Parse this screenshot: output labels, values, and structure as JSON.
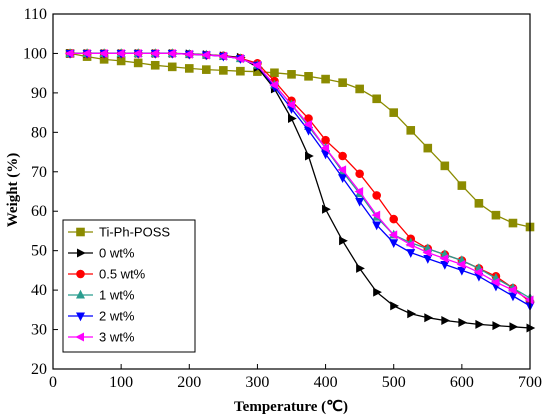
{
  "chart_data": {
    "type": "line",
    "title": "",
    "xlabel": "Temperature (℃)",
    "ylabel": "Weight (%)",
    "xlim": [
      0,
      700
    ],
    "ylim": [
      20,
      110
    ],
    "xticks": [
      0,
      100,
      200,
      300,
      400,
      500,
      600,
      700
    ],
    "yticks": [
      20,
      30,
      40,
      50,
      60,
      70,
      80,
      90,
      100,
      110
    ],
    "grid": false,
    "legend_position": "bottom-left",
    "series": [
      {
        "name": "Ti-Ph-POSS",
        "color": "#8b8b00",
        "marker": "square",
        "points": [
          [
            25,
            100
          ],
          [
            50,
            99.2
          ],
          [
            75,
            98.5
          ],
          [
            100,
            98.1
          ],
          [
            125,
            97.6
          ],
          [
            150,
            97.0
          ],
          [
            175,
            96.6
          ],
          [
            200,
            96.2
          ],
          [
            225,
            95.9
          ],
          [
            250,
            95.7
          ],
          [
            275,
            95.5
          ],
          [
            300,
            95.4
          ],
          [
            325,
            95.1
          ],
          [
            350,
            94.7
          ],
          [
            375,
            94.2
          ],
          [
            400,
            93.5
          ],
          [
            425,
            92.6
          ],
          [
            450,
            91.0
          ],
          [
            475,
            88.5
          ],
          [
            500,
            85.0
          ],
          [
            525,
            80.5
          ],
          [
            550,
            76.0
          ],
          [
            575,
            71.5
          ],
          [
            600,
            66.5
          ],
          [
            625,
            62.0
          ],
          [
            650,
            59.0
          ],
          [
            675,
            57.0
          ],
          [
            700,
            56.0
          ]
        ]
      },
      {
        "name": "0 wt%",
        "color": "#000000",
        "marker": "triangle-right",
        "points": [
          [
            25,
            100
          ],
          [
            50,
            100
          ],
          [
            75,
            100
          ],
          [
            100,
            100
          ],
          [
            125,
            100
          ],
          [
            150,
            100
          ],
          [
            175,
            100
          ],
          [
            200,
            99.9
          ],
          [
            225,
            99.7
          ],
          [
            250,
            99.4
          ],
          [
            275,
            99.0
          ],
          [
            300,
            96.5
          ],
          [
            325,
            91.0
          ],
          [
            350,
            83.5
          ],
          [
            375,
            74.0
          ],
          [
            400,
            60.5
          ],
          [
            425,
            52.5
          ],
          [
            450,
            45.5
          ],
          [
            475,
            39.5
          ],
          [
            500,
            36.0
          ],
          [
            525,
            34.0
          ],
          [
            550,
            33.0
          ],
          [
            575,
            32.3
          ],
          [
            600,
            31.8
          ],
          [
            625,
            31.3
          ],
          [
            650,
            31.0
          ],
          [
            675,
            30.7
          ],
          [
            700,
            30.4
          ]
        ]
      },
      {
        "name": "0.5 wt%",
        "color": "#ff0000",
        "marker": "circle",
        "points": [
          [
            25,
            100
          ],
          [
            50,
            100
          ],
          [
            75,
            100
          ],
          [
            100,
            100
          ],
          [
            125,
            100
          ],
          [
            150,
            100
          ],
          [
            175,
            100
          ],
          [
            200,
            99.8
          ],
          [
            225,
            99.6
          ],
          [
            250,
            99.4
          ],
          [
            275,
            98.8
          ],
          [
            300,
            97.5
          ],
          [
            325,
            93.0
          ],
          [
            350,
            88.0
          ],
          [
            375,
            83.5
          ],
          [
            400,
            78.0
          ],
          [
            425,
            74.0
          ],
          [
            450,
            69.5
          ],
          [
            475,
            64.0
          ],
          [
            500,
            58.0
          ],
          [
            525,
            53.0
          ],
          [
            550,
            50.5
          ],
          [
            575,
            49.0
          ],
          [
            600,
            47.5
          ],
          [
            625,
            45.5
          ],
          [
            650,
            43.5
          ],
          [
            675,
            40.5
          ],
          [
            700,
            37.0
          ]
        ]
      },
      {
        "name": "1 wt%",
        "color": "#2a9d8f",
        "marker": "triangle-up",
        "points": [
          [
            25,
            100
          ],
          [
            50,
            100
          ],
          [
            75,
            100
          ],
          [
            100,
            100
          ],
          [
            125,
            100
          ],
          [
            150,
            100
          ],
          [
            175,
            100
          ],
          [
            200,
            99.8
          ],
          [
            225,
            99.6
          ],
          [
            250,
            99.3
          ],
          [
            275,
            98.7
          ],
          [
            300,
            97.0
          ],
          [
            325,
            92.0
          ],
          [
            350,
            87.0
          ],
          [
            375,
            81.5
          ],
          [
            400,
            76.0
          ],
          [
            425,
            70.0
          ],
          [
            450,
            64.5
          ],
          [
            475,
            58.5
          ],
          [
            500,
            54.0
          ],
          [
            525,
            52.0
          ],
          [
            550,
            50.5
          ],
          [
            575,
            49.0
          ],
          [
            600,
            47.5
          ],
          [
            625,
            45.5
          ],
          [
            650,
            43.0
          ],
          [
            675,
            40.5
          ],
          [
            700,
            38.0
          ]
        ]
      },
      {
        "name": "2 wt%",
        "color": "#0000ff",
        "marker": "triangle-down",
        "points": [
          [
            25,
            100
          ],
          [
            50,
            100
          ],
          [
            75,
            100
          ],
          [
            100,
            100
          ],
          [
            125,
            100
          ],
          [
            150,
            100
          ],
          [
            175,
            100
          ],
          [
            200,
            99.8
          ],
          [
            225,
            99.6
          ],
          [
            250,
            99.3
          ],
          [
            275,
            98.7
          ],
          [
            300,
            97.0
          ],
          [
            325,
            91.5
          ],
          [
            350,
            86.0
          ],
          [
            375,
            80.5
          ],
          [
            400,
            74.5
          ],
          [
            425,
            68.5
          ],
          [
            450,
            62.5
          ],
          [
            475,
            56.5
          ],
          [
            500,
            52.0
          ],
          [
            525,
            49.5
          ],
          [
            550,
            48.0
          ],
          [
            575,
            46.5
          ],
          [
            600,
            45.0
          ],
          [
            625,
            43.5
          ],
          [
            650,
            41.0
          ],
          [
            675,
            38.5
          ],
          [
            700,
            36.0
          ]
        ]
      },
      {
        "name": "3 wt%",
        "color": "#ff00ff",
        "marker": "triangle-left",
        "points": [
          [
            25,
            100
          ],
          [
            50,
            100
          ],
          [
            75,
            100
          ],
          [
            100,
            100
          ],
          [
            125,
            100
          ],
          [
            150,
            100
          ],
          [
            175,
            100
          ],
          [
            200,
            99.8
          ],
          [
            225,
            99.6
          ],
          [
            250,
            99.3
          ],
          [
            275,
            98.7
          ],
          [
            300,
            97.0
          ],
          [
            325,
            92.0
          ],
          [
            350,
            87.0
          ],
          [
            375,
            82.0
          ],
          [
            400,
            76.0
          ],
          [
            425,
            70.5
          ],
          [
            450,
            65.0
          ],
          [
            475,
            59.0
          ],
          [
            500,
            54.0
          ],
          [
            525,
            51.5
          ],
          [
            550,
            49.5
          ],
          [
            575,
            48.0
          ],
          [
            600,
            46.5
          ],
          [
            625,
            44.5
          ],
          [
            650,
            42.0
          ],
          [
            675,
            40.0
          ],
          [
            700,
            37.5
          ]
        ]
      }
    ]
  }
}
